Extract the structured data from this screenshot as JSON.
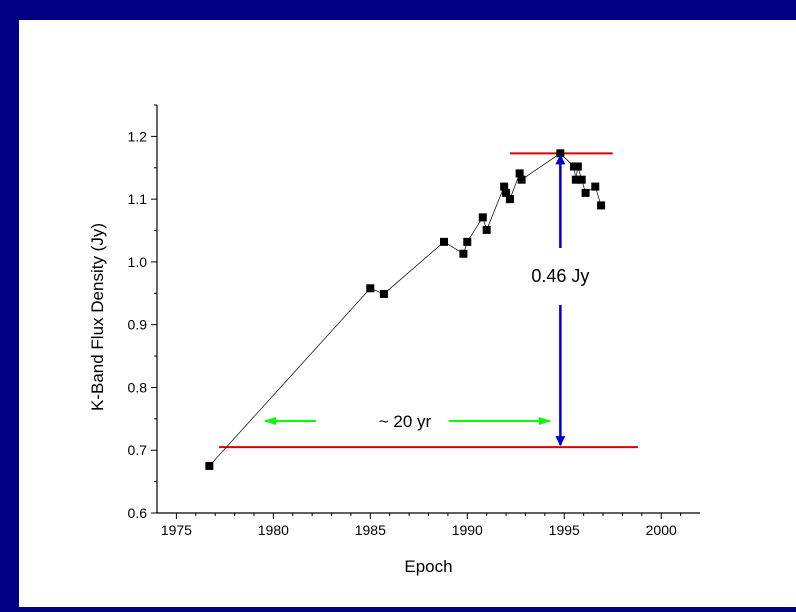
{
  "chart_data": {
    "type": "scatter",
    "xlabel": "Epoch",
    "ylabel": "K-Band Flux Density (Jy)",
    "xlim": [
      1974,
      2002
    ],
    "ylim": [
      0.6,
      1.25
    ],
    "x_ticks": [
      "1975",
      "1980",
      "1985",
      "1990",
      "1995",
      "2000"
    ],
    "y_ticks": [
      "0.6",
      "0.7",
      "0.8",
      "0.9",
      "1.0",
      "1.1",
      "1.2"
    ],
    "grid": false,
    "series": [
      {
        "marker": "square",
        "color": "#000000",
        "points": [
          [
            1976.7,
            0.675
          ],
          [
            1985.0,
            0.958
          ],
          [
            1985.7,
            0.949
          ],
          [
            1988.8,
            1.032
          ],
          [
            1989.8,
            1.013
          ],
          [
            1990.0,
            1.032
          ],
          [
            1990.8,
            1.071
          ],
          [
            1991.0,
            1.051
          ],
          [
            1991.9,
            1.12
          ],
          [
            1992.0,
            1.11
          ],
          [
            1992.2,
            1.1
          ],
          [
            1992.7,
            1.141
          ],
          [
            1992.8,
            1.131
          ],
          [
            1994.8,
            1.173
          ],
          [
            1995.5,
            1.152
          ],
          [
            1995.6,
            1.131
          ],
          [
            1995.7,
            1.152
          ],
          [
            1995.9,
            1.131
          ],
          [
            1996.1,
            1.11
          ],
          [
            1996.6,
            1.12
          ],
          [
            1996.9,
            1.09
          ]
        ]
      }
    ],
    "reference_lines": [
      {
        "y": 1.173,
        "x_from": 1992.2,
        "x_to": 1997.5,
        "color": "#dd0000"
      },
      {
        "y": 0.705,
        "x_from": 1977.2,
        "x_to": 1998.8,
        "color": "#dd0000"
      }
    ],
    "annotations": {
      "amplitude_label": "0.46 Jy",
      "amplitude_color": "#0000cc",
      "timescale_label": "~ 20 yr",
      "timescale_color": "#00ff00"
    }
  }
}
